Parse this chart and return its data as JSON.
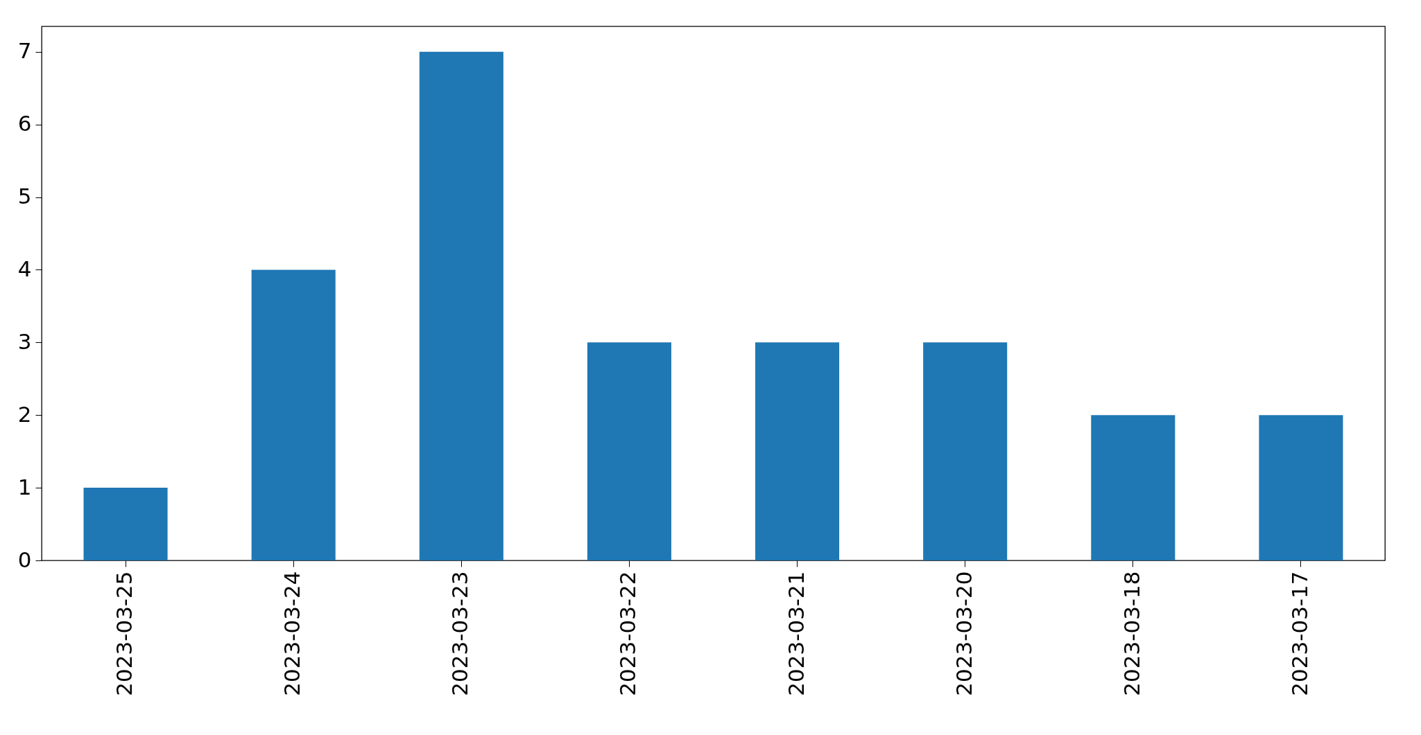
{
  "chart_data": {
    "type": "bar",
    "categories": [
      "2023-03-25",
      "2023-03-24",
      "2023-03-23",
      "2023-03-22",
      "2023-03-21",
      "2023-03-20",
      "2023-03-18",
      "2023-03-17"
    ],
    "values": [
      1,
      4,
      7,
      3,
      3,
      3,
      2,
      2
    ],
    "color": "#1f77b4",
    "ylim": [
      0,
      7.35
    ],
    "yticks": [
      0,
      1,
      2,
      3,
      4,
      5,
      6,
      7
    ],
    "grid": false
  }
}
